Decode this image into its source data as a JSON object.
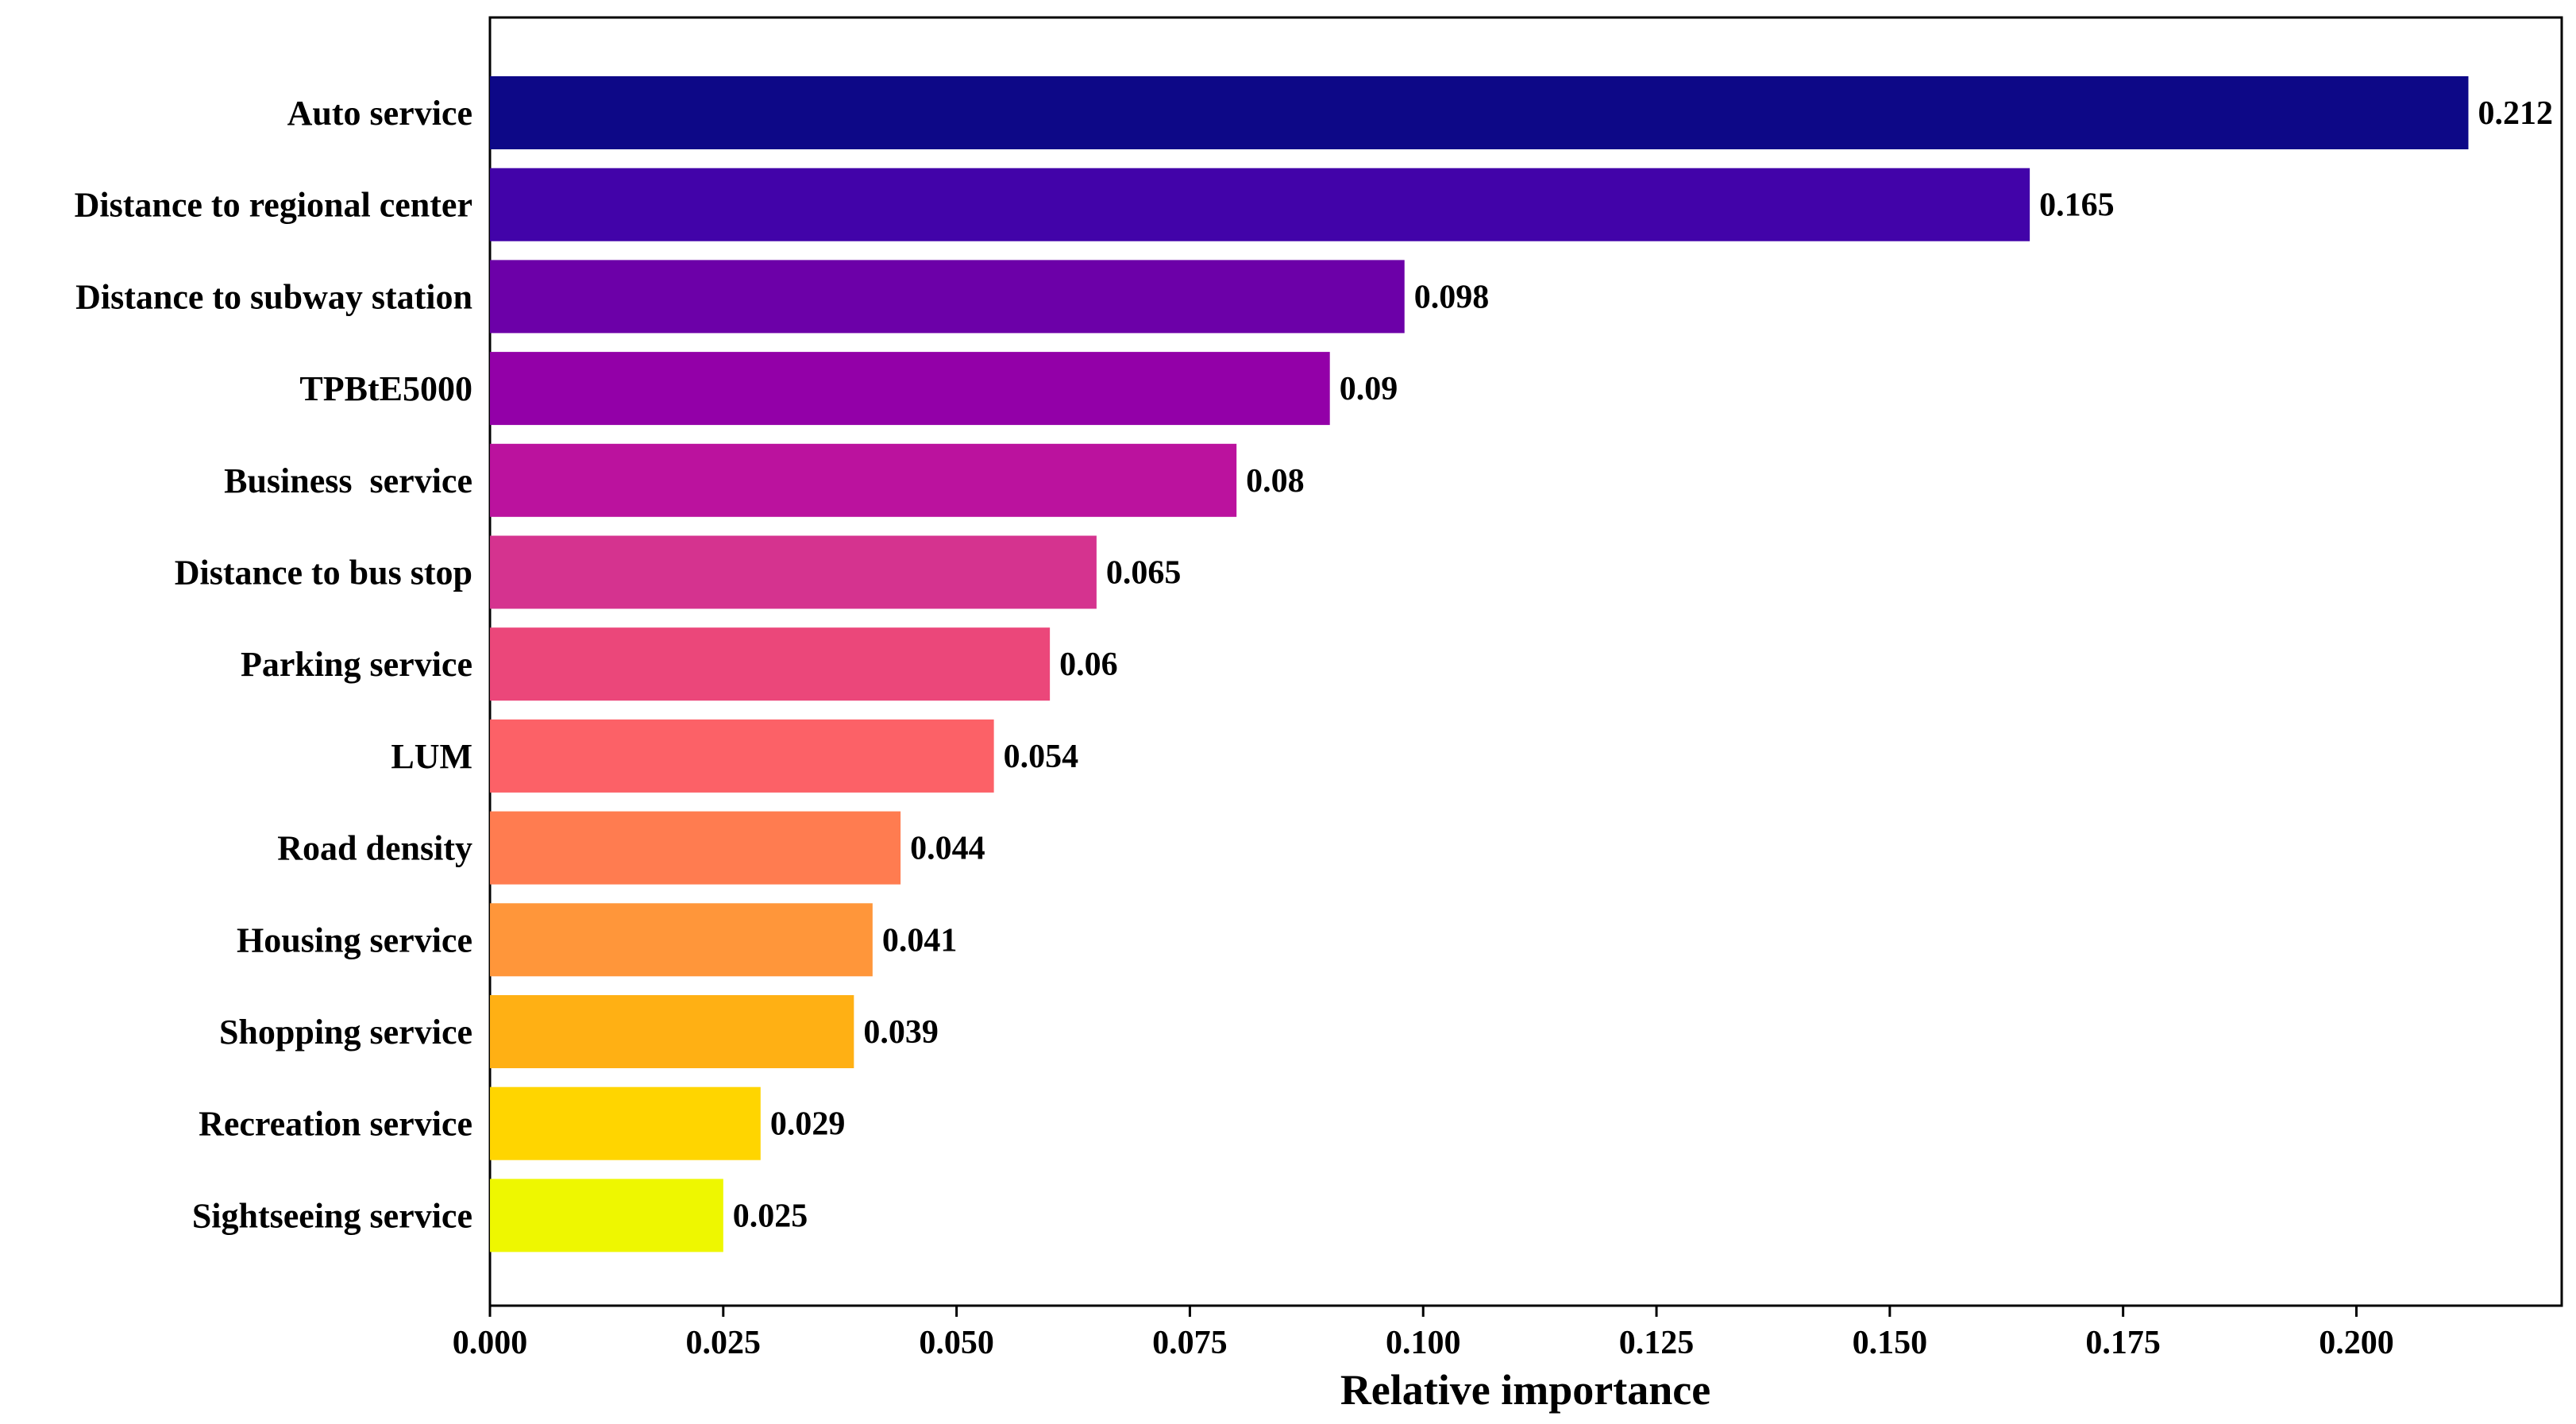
{
  "chart_data": {
    "type": "bar",
    "orientation": "horizontal",
    "categories": [
      "Auto service",
      "Distance to regional center",
      "Distance to subway station",
      "TPBtE5000",
      "Business  service",
      "Distance to bus stop",
      "Parking service",
      "LUM",
      "Road density",
      "Housing service",
      "Shopping service",
      "Recreation service",
      "Sightseeing service"
    ],
    "values": [
      0.212,
      0.165,
      0.098,
      0.09,
      0.08,
      0.065,
      0.06,
      0.054,
      0.044,
      0.041,
      0.039,
      0.029,
      0.025
    ],
    "value_labels": [
      "0.212",
      "0.165",
      "0.098",
      "0.09",
      "0.08",
      "0.065",
      "0.06",
      "0.054",
      "0.044",
      "0.041",
      "0.039",
      "0.029",
      "0.025"
    ],
    "colors": [
      "#0d0887",
      "#41049d",
      "#6a00a8",
      "#8f0da4",
      "#b12a90",
      "#cc4778",
      "#e16462",
      "#f2844b",
      "#fca636",
      "#fcce25",
      "#f0f921"
    ],
    "bar_colors": [
      "#0d0887",
      "#4203a9",
      "#6c00a8",
      "#9300a8",
      "#bb129e",
      "#d5338f",
      "#eb477a",
      "#fc6167",
      "#ff7c50",
      "#ff963a",
      "#ffb014",
      "#ffd500",
      "#eef700"
    ],
    "xlabel": "Relative importance",
    "ylabel": "",
    "title": "",
    "xlim": [
      0,
      0.222
    ],
    "xticks": [
      "0.000",
      "0.025",
      "0.050",
      "0.075",
      "0.100",
      "0.125",
      "0.150",
      "0.175",
      "0.200"
    ],
    "grid": false,
    "legend": "none"
  }
}
